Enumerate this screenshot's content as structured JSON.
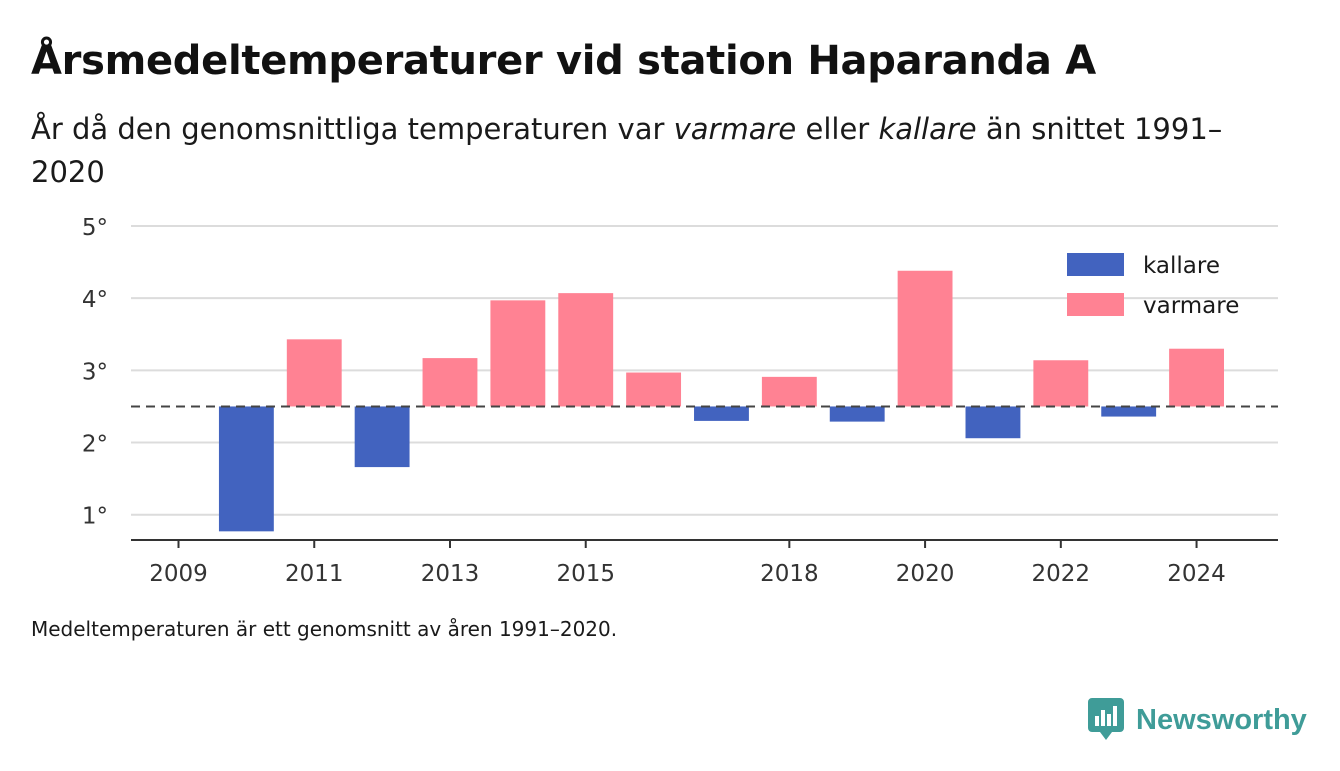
{
  "title": "Årsmedeltemperaturer vid station Haparanda A",
  "subtitle": {
    "part1": "År då den genomsnittliga temperaturen var ",
    "warmer": "varmare",
    "part2": " eller ",
    "colder": "kallare",
    "part3": " än snittet 1991–2020"
  },
  "note": "Medeltemperaturen är ett genomsnitt av åren 1991–2020.",
  "brand": "Newsworthy",
  "colors": {
    "kallare": "#4263bf",
    "varmare": "#ff8293",
    "brand": "#3f9c98"
  },
  "chart_data": {
    "type": "bar",
    "baseline": 2.5,
    "ylim": [
      0.65,
      5
    ],
    "yticks": [
      1,
      2,
      3,
      4,
      5
    ],
    "ytick_labels": [
      "1°",
      "2°",
      "3°",
      "4°",
      "5°"
    ],
    "xlim": [
      2008.3,
      2025.2
    ],
    "xticks": [
      2009,
      2011,
      2013,
      2015,
      2018,
      2020,
      2022,
      2024
    ],
    "legend": [
      {
        "key": "kallare",
        "label": "kallare"
      },
      {
        "key": "varmare",
        "label": "varmare"
      }
    ],
    "legend_position": "top-right",
    "grid": true,
    "years": [
      2010,
      2011,
      2012,
      2013,
      2014,
      2015,
      2016,
      2017,
      2018,
      2019,
      2020,
      2021,
      2022,
      2023,
      2024
    ],
    "values": [
      0.77,
      3.43,
      1.66,
      3.17,
      3.97,
      4.07,
      2.97,
      2.3,
      2.91,
      2.29,
      4.38,
      2.06,
      3.14,
      2.36,
      3.3
    ]
  }
}
